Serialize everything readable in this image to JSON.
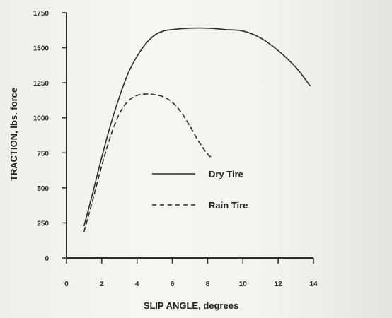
{
  "colors": {
    "ink": "#2b2b2b",
    "background": "#f3f3ee"
  },
  "chart_data": {
    "type": "line",
    "title": "",
    "xlabel": "SLIP ANGLE, degrees",
    "ylabel": "TRACTION, lbs. force",
    "xlim": [
      0,
      14
    ],
    "ylim": [
      0,
      1750
    ],
    "x_ticks": [
      "0",
      "2",
      "4",
      "6",
      "8",
      "10",
      "12",
      "14"
    ],
    "y_ticks": [
      "0",
      "250",
      "500",
      "750",
      "1000",
      "1250",
      "1500",
      "1750"
    ],
    "grid": false,
    "legend_position": "center-right",
    "series": [
      {
        "name": "Dry Tire",
        "style": "solid",
        "x": [
          1.0,
          1.5,
          2.0,
          2.5,
          3.0,
          3.5,
          4.0,
          4.5,
          5.0,
          5.5,
          6.0,
          7.0,
          8.0,
          9.0,
          10.0,
          11.0,
          12.0,
          13.0,
          13.8
        ],
        "y": [
          230,
          470,
          720,
          950,
          1150,
          1320,
          1440,
          1530,
          1590,
          1620,
          1630,
          1640,
          1640,
          1630,
          1620,
          1570,
          1480,
          1360,
          1230
        ]
      },
      {
        "name": "Rain Tire",
        "style": "dashed",
        "x": [
          1.0,
          1.5,
          2.0,
          2.5,
          3.0,
          3.5,
          4.0,
          4.5,
          5.0,
          5.5,
          6.0,
          6.5,
          7.0,
          7.5,
          8.0,
          8.2
        ],
        "y": [
          190,
          420,
          660,
          870,
          1030,
          1120,
          1160,
          1170,
          1165,
          1150,
          1110,
          1040,
          940,
          830,
          740,
          720
        ]
      }
    ]
  }
}
